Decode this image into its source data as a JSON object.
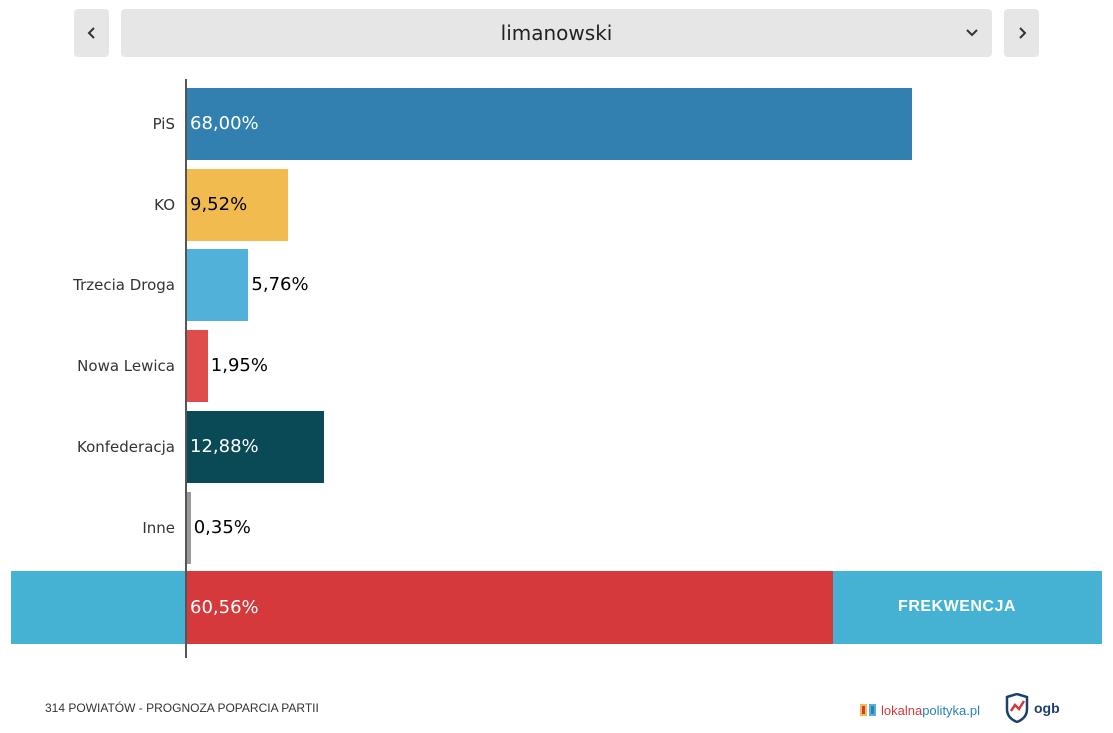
{
  "nav": {
    "prev_icon": "chevron-left-icon",
    "next_icon": "chevron-right-icon",
    "district_select": {
      "value": "limanowski",
      "icon": "chevron-down-icon"
    }
  },
  "chart_data": {
    "type": "bar",
    "orientation": "horizontal",
    "categories": [
      "PiS",
      "KO",
      "Trzecia Droga",
      "Nowa Lewica",
      "Konfederacja",
      "Inne"
    ],
    "values": [
      68.0,
      9.52,
      5.76,
      1.95,
      12.88,
      0.35
    ],
    "value_labels": [
      "68,00%",
      "9,52%",
      "5,76%",
      "1,95%",
      "12,88%",
      "0,35%"
    ],
    "colors": [
      "#3180b0",
      "#f2bb4f",
      "#52b1d8",
      "#df4c4c",
      "#0a4a56",
      "#999999"
    ],
    "label_colors": [
      "#ffffff",
      "#000000",
      "#000000",
      "#000000",
      "#ffffff",
      "#000000"
    ],
    "xlim": [
      0,
      100
    ],
    "turnout": {
      "label": "FREKWENCJA",
      "value": 60.56,
      "value_label": "60,56%",
      "fill_color": "#d5393c",
      "background_color": "#45b2d3"
    }
  },
  "footer": {
    "caption": "314 POWIATÓW - PROGNOZA POPARCIA PARTII",
    "brand_part1": "lokalna",
    "brand_part2": "polityka.pl",
    "brand2": "ogb"
  }
}
